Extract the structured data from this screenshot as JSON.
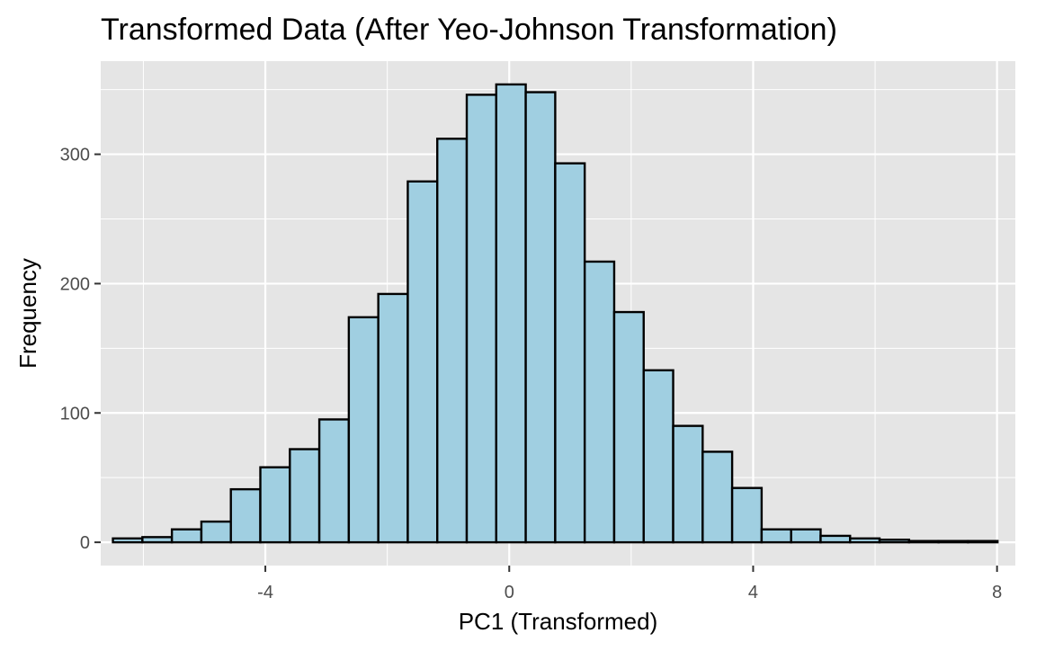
{
  "chart_data": {
    "type": "bar",
    "title": "Transformed Data (After Yeo-Johnson Transformation)",
    "xlabel": "PC1 (Transformed)",
    "ylabel": "Frequency",
    "xlim": [
      -6.7,
      8.3
    ],
    "ylim": [
      -18,
      372
    ],
    "xticks": [
      -4,
      0,
      4,
      8
    ],
    "xtick_labels": [
      "-4",
      "0",
      "4",
      "8"
    ],
    "yticks": [
      0,
      100,
      200,
      300
    ],
    "ytick_labels": [
      "0",
      "100",
      "200",
      "300"
    ],
    "grid": true,
    "bin_width": 0.4836,
    "bins": [
      {
        "x0": -6.5,
        "value": 3
      },
      {
        "x0": -6.0164,
        "value": 4
      },
      {
        "x0": -5.5328,
        "value": 10
      },
      {
        "x0": -5.0492,
        "value": 16
      },
      {
        "x0": -4.5656,
        "value": 41
      },
      {
        "x0": -4.082,
        "value": 58
      },
      {
        "x0": -3.5984,
        "value": 72
      },
      {
        "x0": -3.1148,
        "value": 95
      },
      {
        "x0": -2.6312,
        "value": 174
      },
      {
        "x0": -2.1476,
        "value": 192
      },
      {
        "x0": -1.664,
        "value": 279
      },
      {
        "x0": -1.1804,
        "value": 312
      },
      {
        "x0": -0.6968,
        "value": 346
      },
      {
        "x0": -0.2132,
        "value": 354
      },
      {
        "x0": 0.2704,
        "value": 348
      },
      {
        "x0": 0.754,
        "value": 293
      },
      {
        "x0": 1.2376,
        "value": 217
      },
      {
        "x0": 1.7212,
        "value": 178
      },
      {
        "x0": 2.2048,
        "value": 133
      },
      {
        "x0": 2.6884,
        "value": 90
      },
      {
        "x0": 3.172,
        "value": 70
      },
      {
        "x0": 3.6556,
        "value": 42
      },
      {
        "x0": 4.1392,
        "value": 10
      },
      {
        "x0": 4.6228,
        "value": 10
      },
      {
        "x0": 5.1064,
        "value": 5
      },
      {
        "x0": 5.59,
        "value": 3
      },
      {
        "x0": 6.0736,
        "value": 2
      },
      {
        "x0": 6.5572,
        "value": 1
      },
      {
        "x0": 7.0408,
        "value": 1
      },
      {
        "x0": 7.5244,
        "value": 1
      }
    ],
    "colors": {
      "bar_fill": "#a0cfe1",
      "bar_stroke": "#000000",
      "panel_bg": "#e5e5e5",
      "grid": "#ffffff"
    }
  }
}
